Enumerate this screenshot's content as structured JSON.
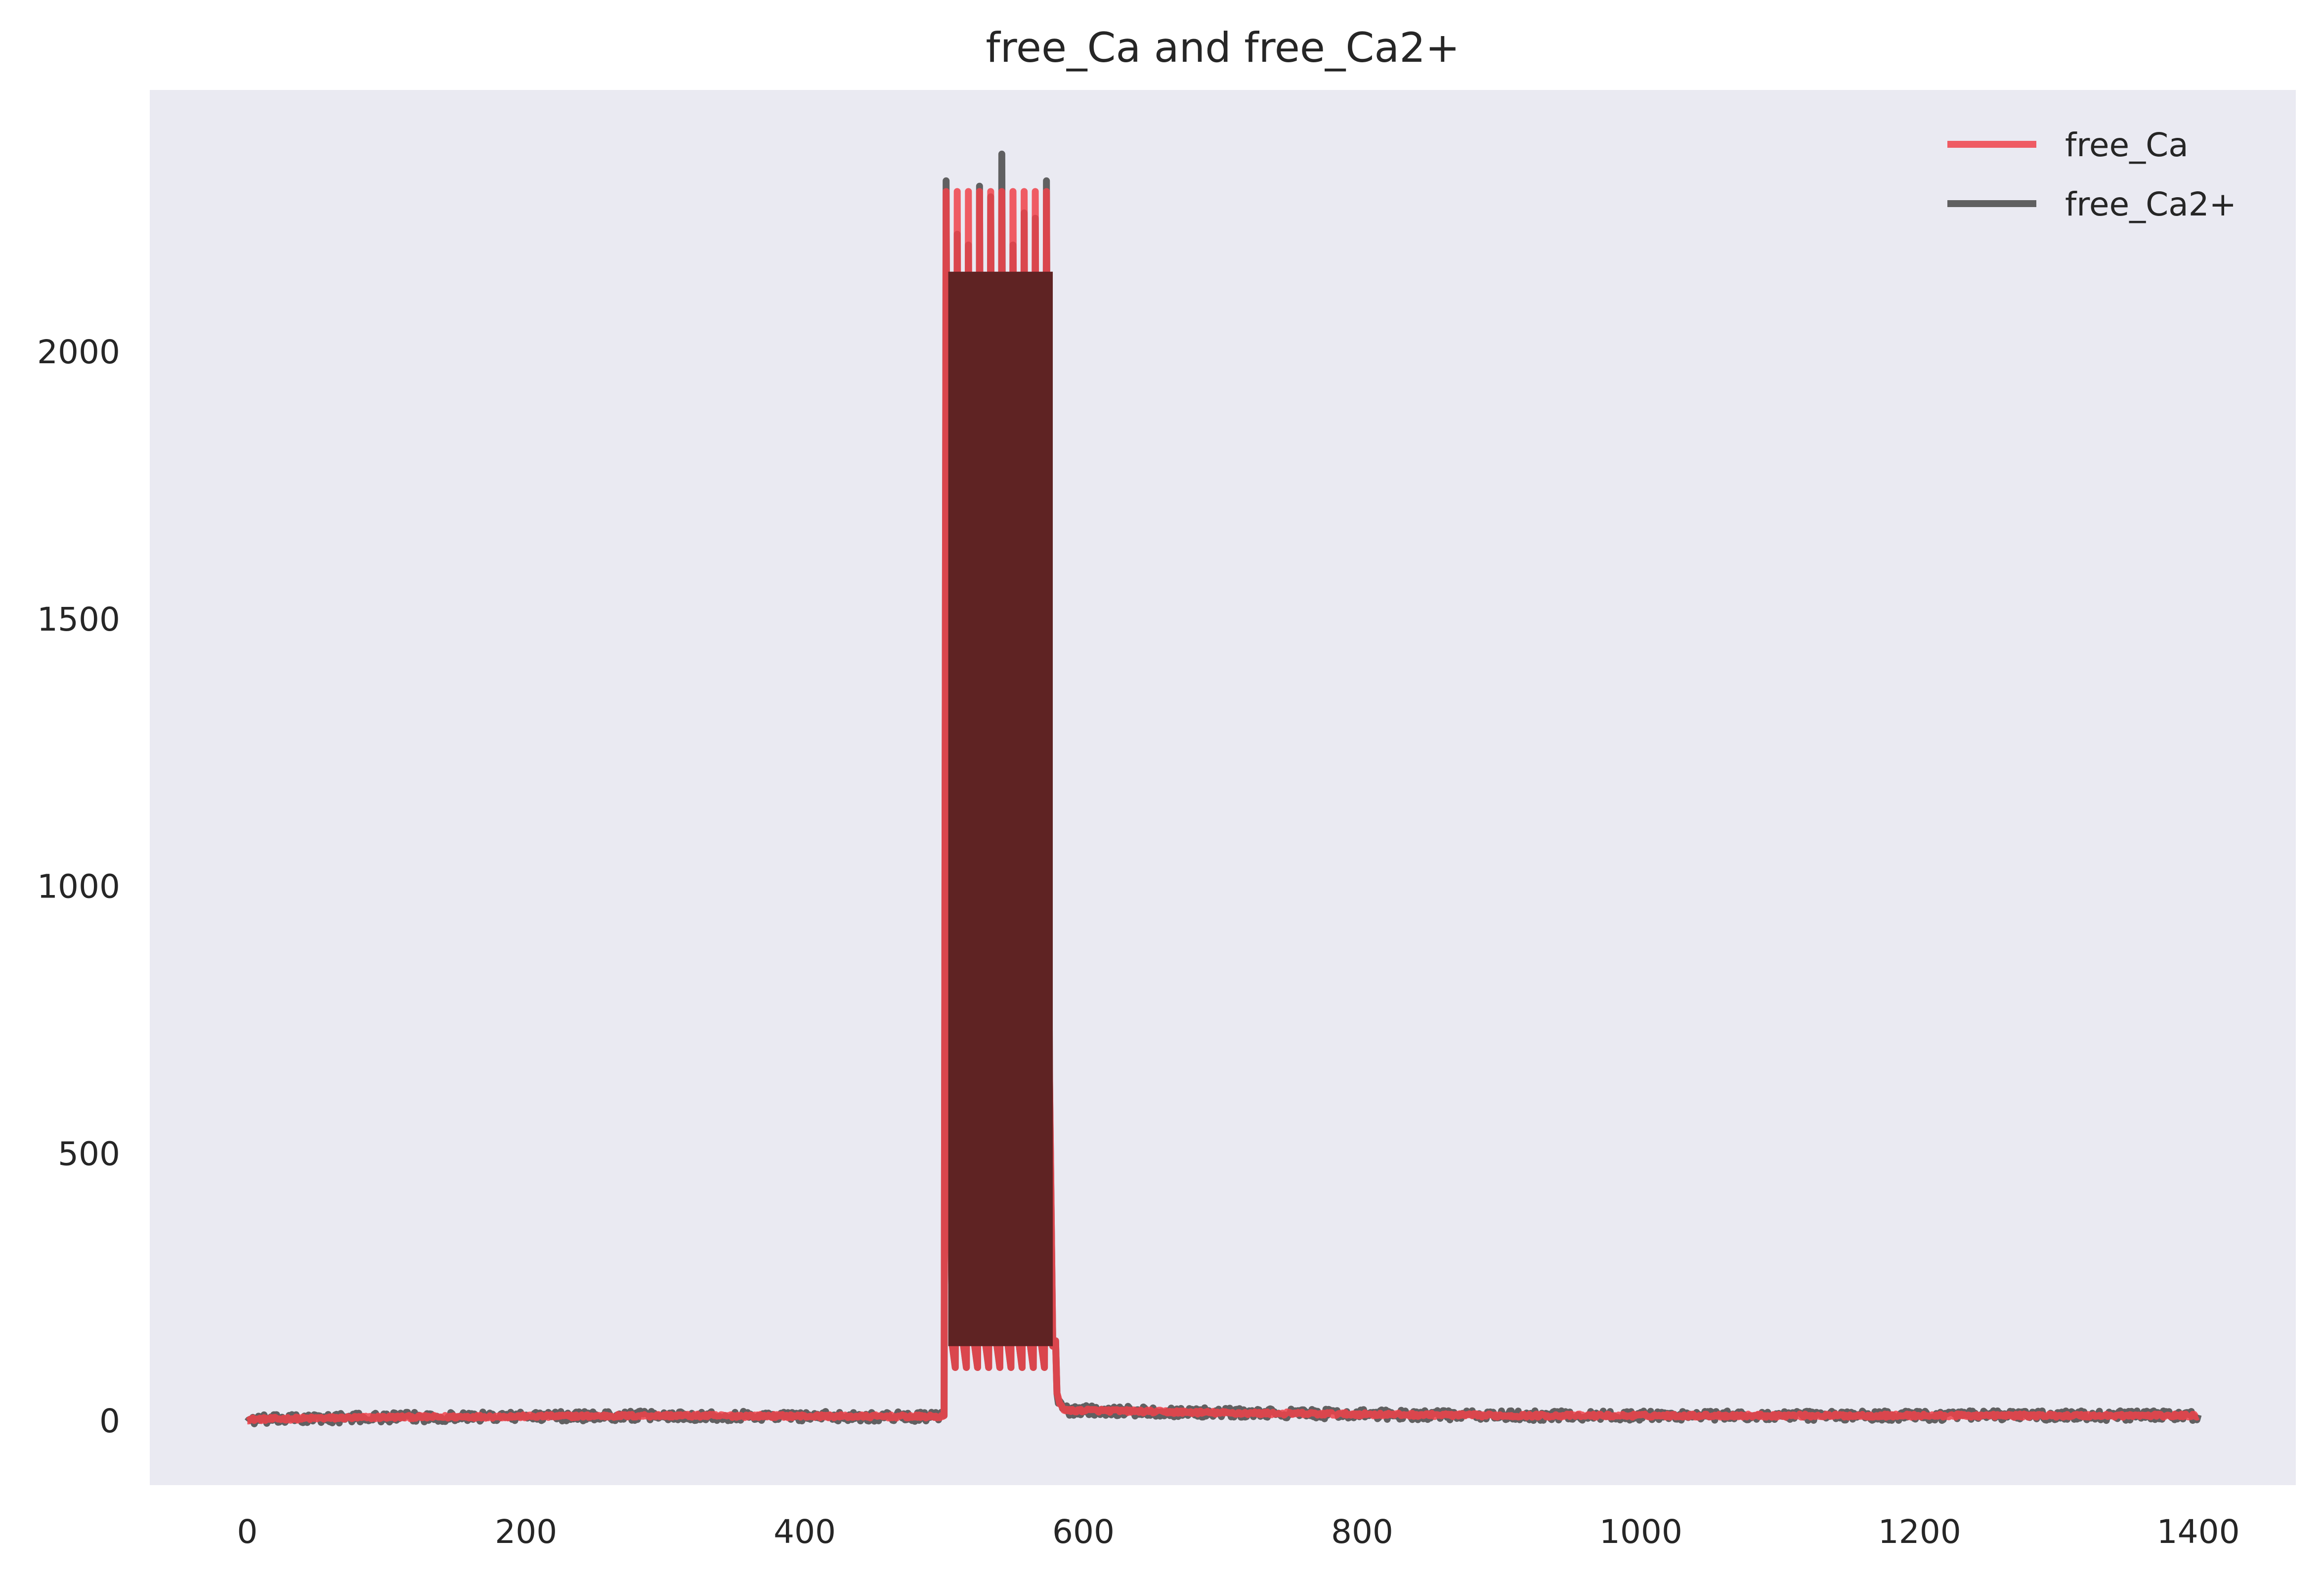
{
  "chart_data": {
    "type": "line",
    "title": "free_Ca and free_Ca2+",
    "xlabel": "",
    "ylabel": "",
    "xlim": [
      -70,
      1470
    ],
    "ylim": [
      -120,
      2490
    ],
    "grid": false,
    "legend_position": "top-right",
    "background": "#eaeaf2",
    "x_ticks": [
      0,
      200,
      400,
      600,
      800,
      1000,
      1200,
      1400
    ],
    "x_tick_labels": [
      "0",
      "200",
      "400",
      "600",
      "800",
      "1000",
      "1200",
      "1400"
    ],
    "y_ticks": [
      0,
      500,
      1000,
      1500,
      2000
    ],
    "y_tick_labels": [
      "0",
      "500",
      "1000",
      "1500",
      "2000"
    ],
    "burst": {
      "x_start": 500,
      "x_end": 580,
      "num_spikes": 10,
      "trough": 100
    },
    "series": [
      {
        "name": "free_Ca",
        "color": "#f0424a",
        "baseline": [
          [
            0,
            3
          ],
          [
            100,
            7
          ],
          [
            300,
            10
          ],
          [
            500,
            8
          ],
          [
            600,
            20
          ],
          [
            700,
            15
          ],
          [
            900,
            10
          ],
          [
            1400,
            10
          ]
        ],
        "spike_peaks": [
          2300,
          2300,
          2300,
          2300,
          2300,
          2300,
          2300,
          2300,
          2300,
          2300
        ],
        "noise": 3
      },
      {
        "name": "free_Ca2+",
        "color": "#484848",
        "baseline": [
          [
            0,
            2
          ],
          [
            100,
            7
          ],
          [
            300,
            10
          ],
          [
            500,
            8
          ],
          [
            600,
            20
          ],
          [
            700,
            15
          ],
          [
            900,
            10
          ],
          [
            1400,
            10
          ]
        ],
        "spike_peaks": [
          2320,
          2220,
          2200,
          2310,
          2290,
          2370,
          2200,
          2260,
          2250,
          2320
        ],
        "noise": 9
      }
    ]
  }
}
